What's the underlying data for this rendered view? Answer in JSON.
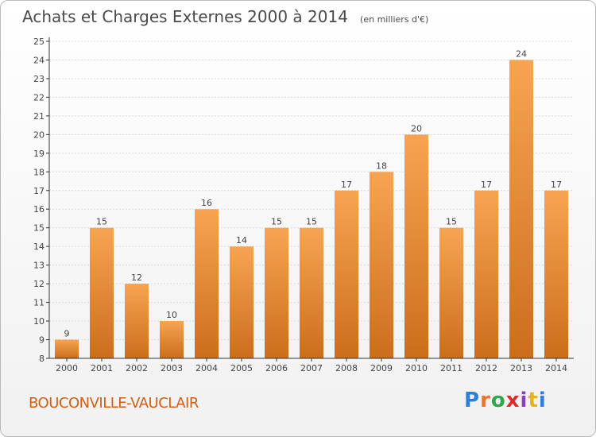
{
  "header": {
    "title": "Achats et Charges Externes 2000 à 2014",
    "subtitle": "(en milliers d'€)"
  },
  "footer": {
    "commune": "BOUCONVILLE-VAUCLAIR",
    "logo_text": "Proxiti",
    "logo_colors": [
      "#2f7fd6",
      "#e9742a",
      "#2ea84a",
      "#e02a2a",
      "#8a3fbf",
      "#e8b21c",
      "#2f7fd6"
    ]
  },
  "colors": {
    "bar_top": "#f7a452",
    "bar_bottom": "#cb6e1c",
    "axis": "#333333",
    "grid": "#d8d8d8"
  },
  "chart_data": {
    "type": "bar",
    "title": "Achats et Charges Externes 2000 à 2014",
    "subtitle": "(en milliers d'€)",
    "categories": [
      "2000",
      "2001",
      "2002",
      "2003",
      "2004",
      "2005",
      "2006",
      "2007",
      "2008",
      "2009",
      "2010",
      "2011",
      "2012",
      "2013",
      "2014"
    ],
    "values": [
      9,
      15,
      12,
      10,
      16,
      14,
      15,
      15,
      17,
      18,
      20,
      15,
      17,
      24,
      17
    ],
    "ylim": [
      8,
      25
    ],
    "yticks": [
      8,
      9,
      10,
      11,
      12,
      13,
      14,
      15,
      16,
      17,
      18,
      19,
      20,
      21,
      22,
      23,
      24,
      25
    ],
    "grid": true,
    "data_labels": true
  }
}
